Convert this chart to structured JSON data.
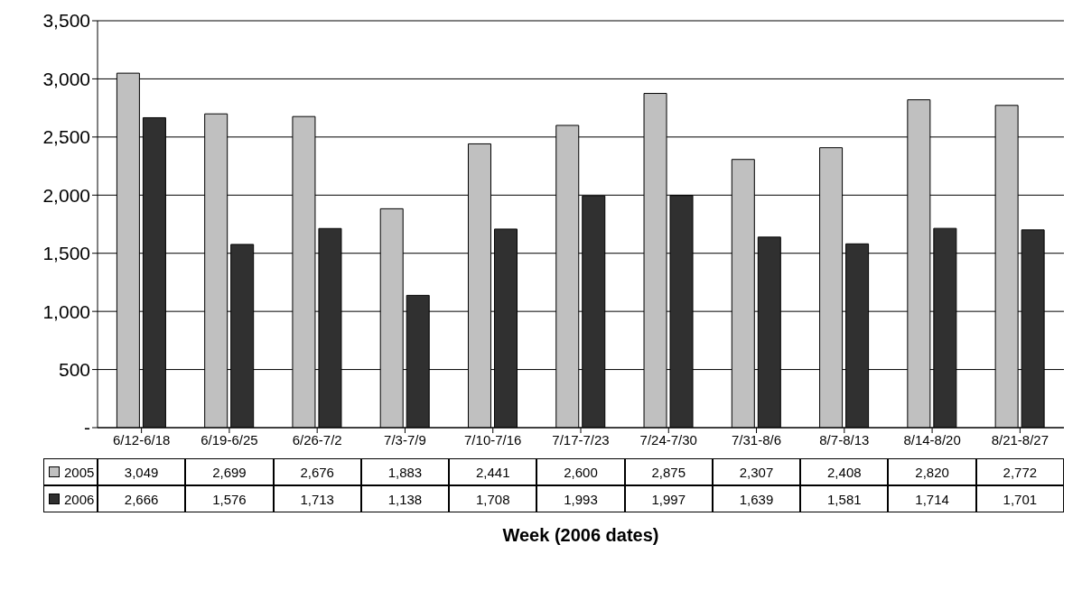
{
  "chart_data": {
    "type": "bar",
    "xlabel": "Week (2006 dates)",
    "categories": [
      "6/12-6/18",
      "6/19-6/25",
      "6/26-7/2",
      "7/3-7/9",
      "7/10-7/16",
      "7/17-7/23",
      "7/24-7/30",
      "7/31-8/6",
      "8/7-8/13",
      "8/14-8/20",
      "8/21-8/27"
    ],
    "series": [
      {
        "name": "2005",
        "color": "#c0c0c0",
        "values": [
          3049,
          2699,
          2676,
          1883,
          2441,
          2600,
          2875,
          2307,
          2408,
          2820,
          2772
        ],
        "value_labels": [
          "3,049",
          "2,699",
          "2,676",
          "1,883",
          "2,441",
          "2,600",
          "2,875",
          "2,307",
          "2,408",
          "2,820",
          "2,772"
        ]
      },
      {
        "name": "2006",
        "color": "#303030",
        "values": [
          2666,
          1576,
          1713,
          1138,
          1708,
          1993,
          1997,
          1639,
          1581,
          1714,
          1701
        ],
        "value_labels": [
          "2,666",
          "1,576",
          "1,713",
          "1,138",
          "1,708",
          "1,993",
          "1,997",
          "1,639",
          "1,581",
          "1,714",
          "1,701"
        ]
      }
    ],
    "ylim": [
      0,
      3500
    ],
    "yticks": [
      {
        "value": 0,
        "label": "-"
      },
      {
        "value": 500,
        "label": "500"
      },
      {
        "value": 1000,
        "label": "1,000"
      },
      {
        "value": 1500,
        "label": "1,500"
      },
      {
        "value": 2000,
        "label": "2,000"
      },
      {
        "value": 2500,
        "label": "2,500"
      },
      {
        "value": 3000,
        "label": "3,000"
      },
      {
        "value": 3500,
        "label": "3,500"
      }
    ],
    "grid": "y",
    "legend": "bottom"
  }
}
